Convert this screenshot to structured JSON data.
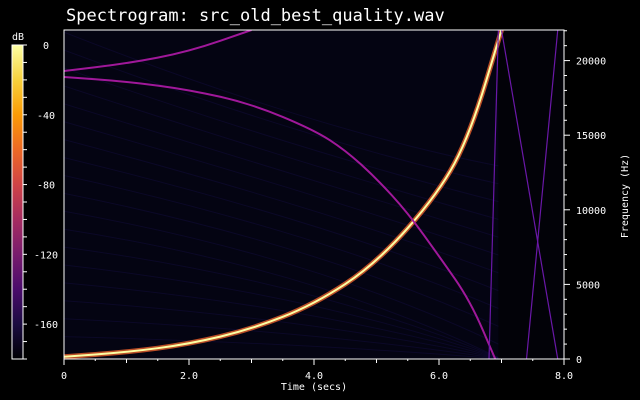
{
  "chart_data": {
    "type": "heatmap",
    "title": "Spectrogram: src_old_best_quality.wav",
    "xlabel": "Time (secs)",
    "ylabel": "Frequency (Hz)",
    "colorbar_label": "dB",
    "xlim": [
      0,
      8
    ],
    "ylim": [
      0,
      22050
    ],
    "x_ticks": [
      {
        "value": 0,
        "label": "0"
      },
      {
        "value": 2,
        "label": "2.0"
      },
      {
        "value": 4,
        "label": "4.0"
      },
      {
        "value": 6,
        "label": "6.0"
      },
      {
        "value": 8,
        "label": "8.0"
      }
    ],
    "y_ticks": [
      {
        "value": 0,
        "label": "0"
      },
      {
        "value": 5000,
        "label": "5000"
      },
      {
        "value": 10000,
        "label": "10000"
      },
      {
        "value": 15000,
        "label": "15000"
      },
      {
        "value": 20000,
        "label": "20000"
      }
    ],
    "colorbar_range_db": [
      -180,
      0
    ],
    "colorbar_ticks": [
      {
        "value": 0,
        "label": "0"
      },
      {
        "value": -40,
        "label": "-40"
      },
      {
        "value": -80,
        "label": "-80"
      },
      {
        "value": -120,
        "label": "-120"
      },
      {
        "value": -160,
        "label": "-160"
      }
    ],
    "colormap": [
      "#000004",
      "#1b0c41",
      "#4a0c6b",
      "#781c6d",
      "#a52c60",
      "#cf4446",
      "#ed6925",
      "#fb9b06",
      "#f7d13d",
      "#fcffa4"
    ],
    "traces": [
      {
        "role": "main sweep",
        "level_db": 0,
        "points": [
          [
            0,
            150
          ],
          [
            1,
            450
          ],
          [
            2,
            1000
          ],
          [
            3,
            2000
          ],
          [
            4,
            3650
          ],
          [
            5,
            6400
          ],
          [
            6,
            11150
          ],
          [
            6.5,
            15100
          ],
          [
            7,
            22050
          ]
        ]
      },
      {
        "role": "upper harmonic",
        "level_db": -90,
        "points": [
          [
            0,
            19300
          ],
          [
            1,
            19800
          ],
          [
            2,
            20600
          ],
          [
            3,
            22050
          ]
        ]
      },
      {
        "role": "aliased sweep",
        "level_db": -90,
        "points": [
          [
            0,
            18900
          ],
          [
            1,
            18600
          ],
          [
            2,
            18050
          ],
          [
            3,
            17100
          ],
          [
            4,
            15350
          ],
          [
            4.5,
            14000
          ],
          [
            5,
            12100
          ],
          [
            5.5,
            9800
          ],
          [
            6,
            6900
          ],
          [
            6.5,
            3900
          ],
          [
            6.9,
            0
          ]
        ]
      },
      {
        "role": "alias",
        "level_db": -110,
        "points": [
          [
            7,
            22050
          ],
          [
            7.9,
            0
          ]
        ]
      },
      {
        "role": "alias",
        "level_db": -110,
        "points": [
          [
            7.4,
            0
          ],
          [
            7.9,
            22050
          ]
        ]
      },
      {
        "role": "alias",
        "level_db": -110,
        "points": [
          [
            6.95,
            22050
          ],
          [
            6.8,
            0
          ]
        ]
      }
    ]
  }
}
